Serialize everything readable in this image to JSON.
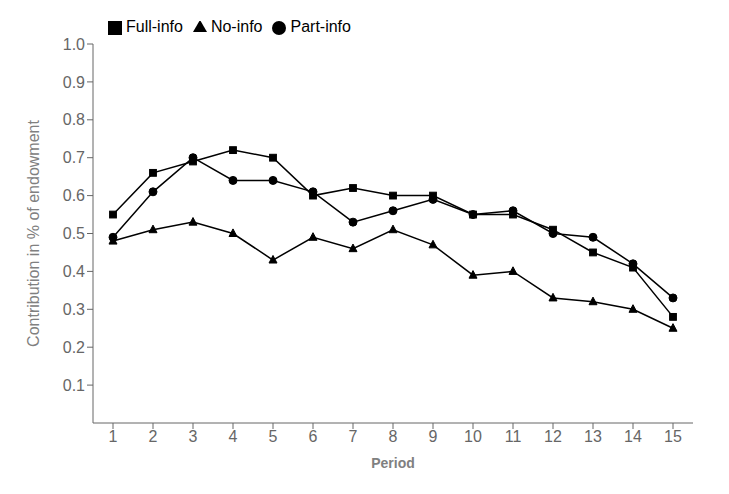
{
  "chart_data": {
    "type": "line",
    "x": [
      1,
      2,
      3,
      4,
      5,
      6,
      7,
      8,
      9,
      10,
      11,
      12,
      13,
      14,
      15
    ],
    "series": [
      {
        "name": "No-info",
        "color": "#000000",
        "marker": "triangle",
        "values": [
          0.48,
          0.51,
          0.53,
          0.5,
          0.43,
          0.49,
          0.46,
          0.51,
          0.47,
          0.39,
          0.4,
          0.33,
          0.32,
          0.3,
          0.25
        ]
      },
      {
        "name": "Part-info",
        "color": "#000000",
        "marker": "circle",
        "values": [
          0.49,
          0.61,
          0.7,
          0.64,
          0.64,
          0.61,
          0.53,
          0.56,
          0.59,
          0.55,
          0.56,
          0.5,
          0.49,
          0.42,
          0.33
        ]
      },
      {
        "name": "Full-info",
        "color": "#000000",
        "marker": "square",
        "values": [
          0.55,
          0.66,
          0.69,
          0.72,
          0.7,
          0.6,
          0.62,
          0.6,
          0.6,
          0.55,
          0.55,
          0.51,
          0.45,
          0.41,
          0.28
        ]
      }
    ],
    "xlabel": "Period",
    "ylabel": "Contribution in % of endowment",
    "xlim": [
      0.5,
      15.5
    ],
    "xticks": [
      1,
      2,
      3,
      4,
      5,
      6,
      7,
      8,
      9,
      10,
      11,
      12,
      13,
      14,
      15
    ],
    "ylim": [
      0.0,
      1.0
    ],
    "yticks": [
      0.1,
      0.2,
      0.3,
      0.4,
      0.5,
      0.6,
      0.7,
      0.8,
      0.9,
      {
        "value": 1.0,
        "label": "1.0"
      }
    ],
    "grid": false,
    "legend": "upper left"
  }
}
